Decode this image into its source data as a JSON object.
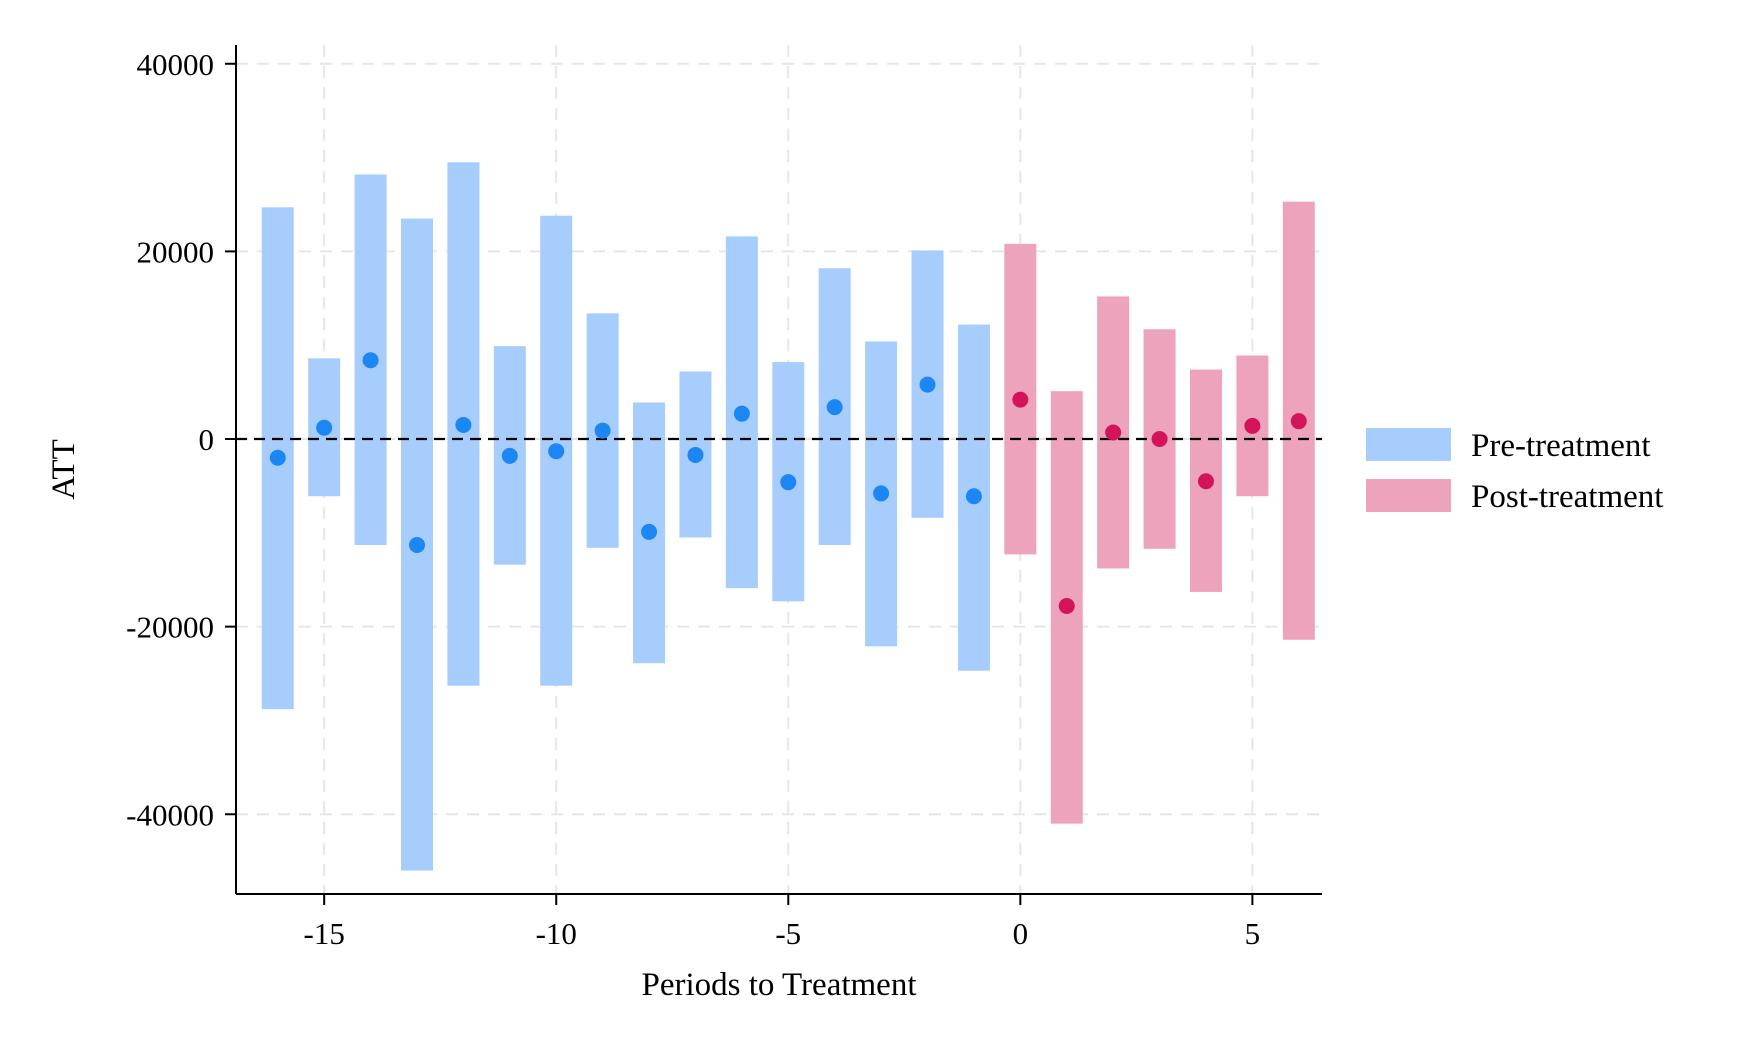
{
  "chart_data": {
    "type": "errorbar",
    "title": "",
    "xlabel": "Periods to Treatment",
    "ylabel": "ATT",
    "xlim": [
      -16.9,
      6.5
    ],
    "ylim": [
      -48500,
      42000
    ],
    "x_ticks": [
      -15,
      -10,
      -5,
      0,
      5
    ],
    "y_ticks": [
      40000,
      20000,
      0,
      -20000,
      -40000
    ],
    "grid": true,
    "reference_line": {
      "y": 0,
      "style": "dashed"
    },
    "legend": {
      "position": "right",
      "entries": [
        {
          "label": "Pre-treatment",
          "color": "#a6cdfc"
        },
        {
          "label": "Post-treatment",
          "color": "#eda3bc"
        }
      ]
    },
    "series": [
      {
        "name": "Pre-treatment",
        "bar_color": "#a6cdfc",
        "point_color": "#1c86f2",
        "x": [
          -16,
          -15,
          -14,
          -13,
          -12,
          -11,
          -10,
          -9,
          -8,
          -7,
          -6,
          -5,
          -4,
          -3,
          -2,
          -1
        ],
        "estimate": [
          -2000,
          1200,
          8400,
          -11300,
          1500,
          -1800,
          -1300,
          900,
          -9900,
          -1700,
          2700,
          -4600,
          3400,
          -5800,
          5800,
          -6100
        ],
        "ci_low": [
          -28800,
          -6100,
          -11300,
          -46000,
          -26300,
          -13400,
          -26300,
          -11600,
          -23900,
          -10500,
          -15900,
          -17300,
          -11300,
          -22100,
          -8400,
          -24700
        ],
        "ci_high": [
          24700,
          8600,
          28200,
          23500,
          29500,
          9900,
          23800,
          13400,
          3900,
          7200,
          21600,
          8200,
          18200,
          10400,
          20100,
          12200
        ]
      },
      {
        "name": "Post-treatment",
        "bar_color": "#eda3bc",
        "point_color": "#d4145a",
        "x": [
          0,
          1,
          2,
          3,
          4,
          5,
          6
        ],
        "estimate": [
          4200,
          -17800,
          700,
          0,
          -4500,
          1400,
          1900
        ],
        "ci_low": [
          -12300,
          -41000,
          -13800,
          -11700,
          -16300,
          -6100,
          -21400
        ],
        "ci_high": [
          20800,
          5100,
          15200,
          11700,
          7400,
          8900,
          25300
        ]
      }
    ]
  }
}
